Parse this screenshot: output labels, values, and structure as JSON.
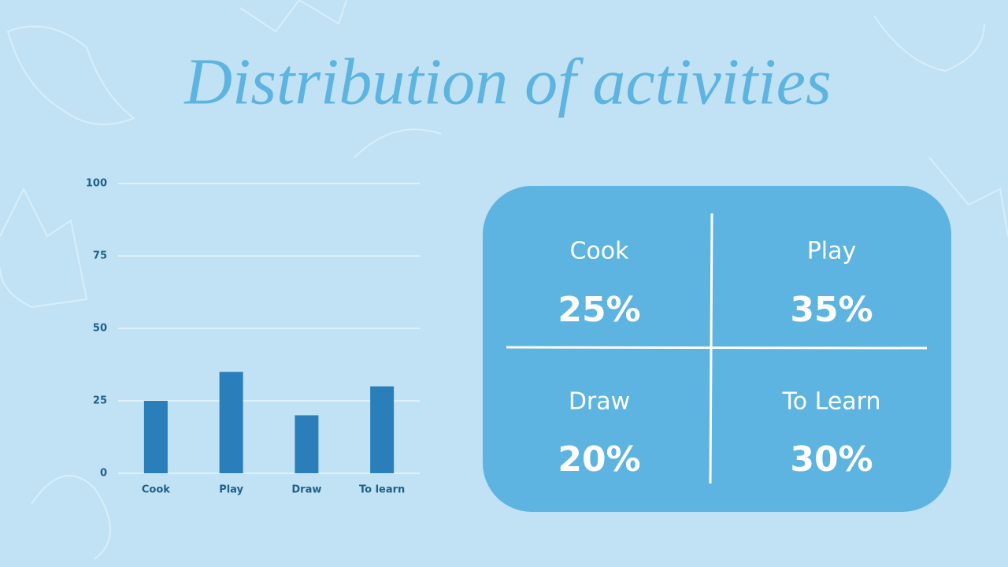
{
  "chart_data": {
    "type": "bar",
    "title": "Distribution of activities",
    "categories": [
      "Cook",
      "Play",
      "Draw",
      "To learn"
    ],
    "values": [
      25,
      35,
      20,
      30
    ],
    "color": "#2a7fba",
    "ylim": [
      0,
      100
    ],
    "yticks": [
      0,
      25,
      50,
      75,
      100
    ],
    "grid": true
  },
  "panel": {
    "cells": [
      {
        "label": "Cook",
        "value": "25%"
      },
      {
        "label": "Play",
        "value": "35%"
      },
      {
        "label": "Draw",
        "value": "20%"
      },
      {
        "label": "To Learn",
        "value": "30%"
      }
    ]
  }
}
